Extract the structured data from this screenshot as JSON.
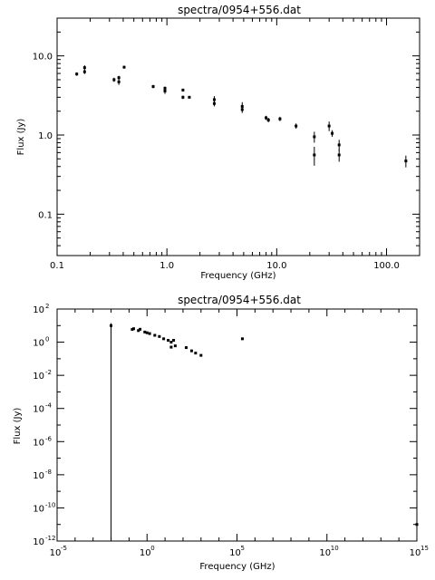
{
  "chart_data": [
    {
      "type": "scatter",
      "title": "spectra/0954+556.dat",
      "xlabel": "Frequency (GHz)",
      "ylabel": "Flux (Jy)",
      "xscale": "log",
      "yscale": "log",
      "xlim": [
        0.1,
        200
      ],
      "ylim": [
        0.03,
        30
      ],
      "x_tick_labels": [
        "0.1",
        "1.0",
        "10.0",
        "100.0"
      ],
      "x_tick_values": [
        0.1,
        1,
        10,
        100
      ],
      "y_tick_labels": [
        "0.1",
        "1.0",
        "10.0"
      ],
      "y_tick_values": [
        0.1,
        1,
        10
      ],
      "points": [
        {
          "x": 0.151,
          "y": 5.9,
          "err": 0.3
        },
        {
          "x": 0.178,
          "y": 6.3,
          "err": 0.4
        },
        {
          "x": 0.178,
          "y": 7.1,
          "err": 0.5
        },
        {
          "x": 0.33,
          "y": 5.0,
          "err": 0.3
        },
        {
          "x": 0.365,
          "y": 4.7,
          "err": 0.4
        },
        {
          "x": 0.365,
          "y": 5.3,
          "err": 0.3
        },
        {
          "x": 0.408,
          "y": 7.2,
          "err": 0.3
        },
        {
          "x": 0.75,
          "y": 4.1,
          "err": 0.2
        },
        {
          "x": 0.96,
          "y": 3.6,
          "err": 0.3
        },
        {
          "x": 0.96,
          "y": 3.9,
          "err": 0.2
        },
        {
          "x": 1.4,
          "y": 3.7,
          "err": 0.15
        },
        {
          "x": 1.4,
          "y": 3.0,
          "err": 0.15
        },
        {
          "x": 1.6,
          "y": 3.0,
          "err": 0.1
        },
        {
          "x": 2.7,
          "y": 2.8,
          "err": 0.3
        },
        {
          "x": 2.7,
          "y": 2.5,
          "err": 0.2
        },
        {
          "x": 4.85,
          "y": 2.3,
          "err": 0.3
        },
        {
          "x": 4.85,
          "y": 2.1,
          "err": 0.2
        },
        {
          "x": 8.0,
          "y": 1.65,
          "err": 0.1
        },
        {
          "x": 8.4,
          "y": 1.55,
          "err": 0.1
        },
        {
          "x": 10.7,
          "y": 1.6,
          "err": 0.1
        },
        {
          "x": 15.0,
          "y": 1.3,
          "err": 0.1
        },
        {
          "x": 22.0,
          "y": 0.95,
          "err": 0.15
        },
        {
          "x": 22.0,
          "y": 0.56,
          "err": 0.15
        },
        {
          "x": 30.0,
          "y": 1.3,
          "err": 0.18
        },
        {
          "x": 32.0,
          "y": 1.05,
          "err": 0.1
        },
        {
          "x": 37.0,
          "y": 0.75,
          "err": 0.12
        },
        {
          "x": 37.0,
          "y": 0.56,
          "err": 0.1
        },
        {
          "x": 150.0,
          "y": 0.47,
          "err": 0.08
        }
      ]
    },
    {
      "type": "scatter",
      "title": "spectra/0954+556.dat",
      "xlabel": "Frequency (GHz)",
      "ylabel": "Flux (Jy)",
      "xscale": "log",
      "yscale": "log",
      "x_tick_exponents": [
        -5,
        0,
        5,
        10,
        15
      ],
      "y_tick_exponents": [
        -12,
        -10,
        -8,
        -6,
        -4,
        -2,
        0,
        2
      ],
      "tick_base": "10",
      "xlim_exp": [
        -5,
        15
      ],
      "ylim_exp": [
        -12,
        2
      ],
      "points": [
        {
          "x": 0.01,
          "y": 10.0,
          "err": 4.0
        },
        {
          "x": 0.15,
          "y": 5.9
        },
        {
          "x": 0.18,
          "y": 6.5
        },
        {
          "x": 0.33,
          "y": 5.0
        },
        {
          "x": 0.41,
          "y": 6.0
        },
        {
          "x": 0.75,
          "y": 4.1
        },
        {
          "x": 1.0,
          "y": 3.7
        },
        {
          "x": 1.4,
          "y": 3.3
        },
        {
          "x": 2.7,
          "y": 2.6
        },
        {
          "x": 4.85,
          "y": 2.2
        },
        {
          "x": 8.4,
          "y": 1.6
        },
        {
          "x": 15.0,
          "y": 1.3
        },
        {
          "x": 22.0,
          "y": 1.0
        },
        {
          "x": 22.0,
          "y": 0.5
        },
        {
          "x": 30.0,
          "y": 1.3
        },
        {
          "x": 37.0,
          "y": 0.6
        },
        {
          "x": 150.0,
          "y": 0.47
        },
        {
          "x": 300.0,
          "y": 0.3
        },
        {
          "x": 500.0,
          "y": 0.22
        },
        {
          "x": 1000.0,
          "y": 0.16
        },
        {
          "x": 200000.0,
          "y": 1.6
        },
        {
          "x": 1000000000000000.0,
          "y": 1e-11
        }
      ],
      "vertical_line": {
        "x": 0.01,
        "y_from_exp": -12,
        "y_to": 10.0
      }
    }
  ]
}
